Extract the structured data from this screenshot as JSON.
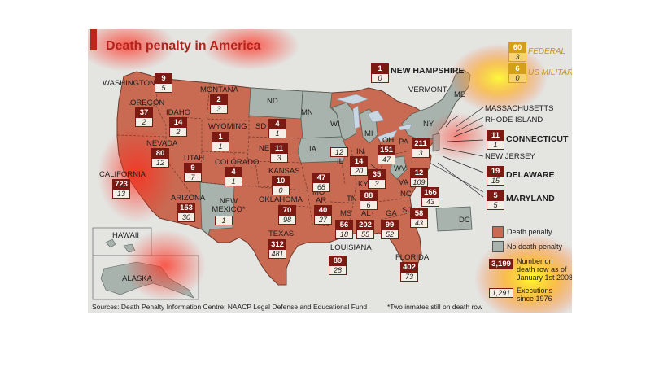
{
  "title": "Death penalty in America",
  "colors": {
    "death_penalty": "#c96a52",
    "no_death_penalty": "#a8b3ad",
    "badge_dark": "#7a1a12",
    "federal": "#d4a017",
    "title": "#b3231e"
  },
  "federal": {
    "label": "FEDERAL",
    "death_row": "60",
    "executions": "3"
  },
  "military": {
    "label": "US MILITARY",
    "death_row": "6",
    "executions": "0"
  },
  "states": {
    "WA": {
      "name": "WASHINGTON",
      "dr": "9",
      "ex": "5"
    },
    "OR": {
      "name": "OREGON",
      "dr": "37",
      "ex": "2"
    },
    "CA": {
      "name": "CALIFORNIA",
      "dr": "723",
      "ex": "13"
    },
    "ID": {
      "name": "IDAHO",
      "dr": "14",
      "ex": "2"
    },
    "NV": {
      "name": "NEVADA",
      "dr": "80",
      "ex": "12"
    },
    "MT": {
      "name": "MONTANA",
      "dr": "2",
      "ex": "3"
    },
    "WY": {
      "name": "WYOMING",
      "dr": "1",
      "ex": "1"
    },
    "UT": {
      "name": "UTAH",
      "dr": "9",
      "ex": "7"
    },
    "AZ": {
      "name": "ARIZONA",
      "dr": "153",
      "ex": "30"
    },
    "CO": {
      "name": "COLORADO",
      "dr": "4",
      "ex": "1"
    },
    "NM": {
      "name": "NEW MEXICO*",
      "dr": "",
      "ex": "1"
    },
    "SD": {
      "name": "SD",
      "dr": "4",
      "ex": "1"
    },
    "NE": {
      "name": "NE",
      "dr": "11",
      "ex": "3"
    },
    "KS": {
      "name": "KANSAS",
      "dr": "10",
      "ex": "0"
    },
    "OK": {
      "name": "OKLAHOMA",
      "dr": "70",
      "ex": "98"
    },
    "TX": {
      "name": "TEXAS",
      "dr": "312",
      "ex": "481"
    },
    "MO": {
      "name": "MO",
      "dr": "47",
      "ex": "68"
    },
    "AR": {
      "name": "AR",
      "dr": "40",
      "ex": "27"
    },
    "LA": {
      "name": "LOUISIANA",
      "dr": "89",
      "ex": "28"
    },
    "IL": {
      "name": "IL",
      "dr": "",
      "ex": "12"
    },
    "IN": {
      "name": "IN",
      "dr": "14",
      "ex": "20"
    },
    "OH": {
      "name": "OH",
      "dr": "151",
      "ex": "47"
    },
    "KY": {
      "name": "KY",
      "dr": "35",
      "ex": "3"
    },
    "TN": {
      "name": "TN",
      "dr": "88",
      "ex": "6"
    },
    "MS": {
      "name": "MS",
      "dr": "56",
      "ex": "18"
    },
    "AL": {
      "name": "AL",
      "dr": "202",
      "ex": "55"
    },
    "GA": {
      "name": "GA",
      "dr": "99",
      "ex": "52"
    },
    "FL": {
      "name": "FLORIDA",
      "dr": "402",
      "ex": "73"
    },
    "SC": {
      "name": "SC",
      "dr": "58",
      "ex": "43"
    },
    "NC": {
      "name": "NC",
      "dr": "166",
      "ex": "43"
    },
    "VA": {
      "name": "VA",
      "dr": "12",
      "ex": "109"
    },
    "WV": {
      "name": "WV"
    },
    "PA": {
      "name": "PA",
      "dr": "211",
      "ex": "3"
    },
    "NH": {
      "name": "NEW HAMPSHIRE",
      "dr": "1",
      "ex": "0"
    },
    "CT": {
      "name": "CONNECTICUT",
      "dr": "11",
      "ex": "1"
    },
    "DE": {
      "name": "DELAWARE",
      "dr": "19",
      "ex": "15"
    },
    "MD": {
      "name": "MARYLAND",
      "dr": "5",
      "ex": "5"
    }
  },
  "no_dp_labels": {
    "ND": "ND",
    "MN": "MN",
    "IA": "IA",
    "WI": "WI",
    "MI": "MI",
    "NY": "NY",
    "ME": "ME",
    "VT": "VERMONT",
    "MA": "MASSACHUSETTS",
    "RI": "RHODE ISLAND",
    "NJ": "NEW JERSEY",
    "DC": "DC",
    "HI": "HAWAII",
    "AK": "ALASKA"
  },
  "legend": {
    "death_penalty": "Death penalty",
    "no_death_penalty": "No death penalty",
    "sample_death_row": "3,199",
    "death_row_text": [
      "Number on",
      "death row as of",
      "January 1st 2008"
    ],
    "sample_executions": "1,291",
    "executions_text": [
      "Executions",
      "since 1976"
    ]
  },
  "footer": {
    "sources": "Sources: Death Penalty Information Centre; NAACP Legal Defense and Educational Fund",
    "note": "*Two inmates still on death row"
  }
}
